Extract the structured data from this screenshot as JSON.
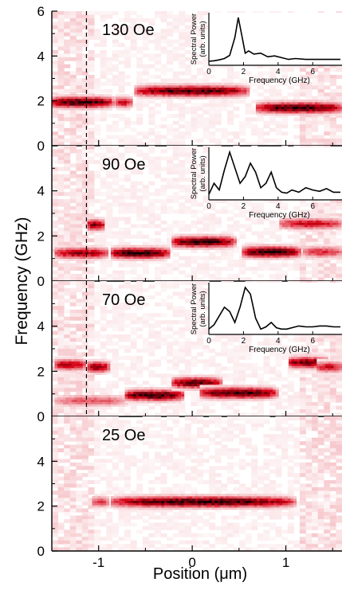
{
  "figure": {
    "ylabel": "Frequency (GHz)",
    "xlabel_prefix": "Position (",
    "xlabel_mu": "μ",
    "xlabel_suffix": "m)"
  },
  "chart_data": [
    {
      "type": "heatmap",
      "label": "130 Oe",
      "xlim": [
        -1.5,
        1.6
      ],
      "ylim": [
        0,
        6
      ],
      "yticks": [
        "0",
        "2",
        "4",
        "6"
      ],
      "dashed_line_x": -1.13,
      "bands": [
        {
          "x0": -1.55,
          "x1": -0.85,
          "f": 1.95,
          "peak": 1.0
        },
        {
          "x0": -0.85,
          "x1": -0.65,
          "f": 1.95,
          "peak": 0.6
        },
        {
          "x0": -0.65,
          "x1": 0.6,
          "f": 2.45,
          "peak": 0.95
        },
        {
          "x0": 0.65,
          "x1": 1.6,
          "f": 1.7,
          "peak": 1.0
        }
      ],
      "inset": {
        "ylabel_line1": "Spectral Power",
        "ylabel_line2": "(arb. units)",
        "xlabel": "Frequency (GHz)",
        "xticks": [
          "0",
          "2",
          "4",
          "6"
        ],
        "xlim": [
          0,
          7.6
        ],
        "x": [
          0,
          0.3,
          0.6,
          0.9,
          1.2,
          1.5,
          1.7,
          1.9,
          2.1,
          2.3,
          2.6,
          3.0,
          3.4,
          3.8,
          4.2,
          4.6,
          5.0,
          5.6,
          6.2,
          6.8,
          7.6
        ],
        "y": [
          0.02,
          0.03,
          0.05,
          0.08,
          0.15,
          0.55,
          1.0,
          0.6,
          0.2,
          0.25,
          0.18,
          0.2,
          0.12,
          0.14,
          0.1,
          0.06,
          0.08,
          0.06,
          0.06,
          0.06,
          0.06
        ]
      }
    },
    {
      "type": "heatmap",
      "label": "90 Oe",
      "xlim": [
        -1.5,
        1.6
      ],
      "ylim": [
        0,
        6
      ],
      "yticks": [
        "0",
        "2",
        "4"
      ],
      "dashed_line_x": -1.13,
      "bands": [
        {
          "x0": -1.5,
          "x1": -0.9,
          "f": 1.25,
          "peak": 0.75
        },
        {
          "x0": -0.9,
          "x1": -0.25,
          "f": 1.25,
          "peak": 1.0
        },
        {
          "x0": -0.25,
          "x1": 0.45,
          "f": 1.75,
          "peak": 1.0
        },
        {
          "x0": 0.5,
          "x1": 1.15,
          "f": 1.3,
          "peak": 1.0
        },
        {
          "x0": -1.15,
          "x1": -0.95,
          "f": 2.5,
          "peak": 0.8
        },
        {
          "x0": 0.9,
          "x1": 1.6,
          "f": 2.55,
          "peak": 0.6
        },
        {
          "x0": 1.15,
          "x1": 1.6,
          "f": 1.3,
          "peak": 0.5
        }
      ],
      "inset": {
        "ylabel_line1": "Spectral Power",
        "ylabel_line2": "(arb. units)",
        "xlabel": "Frequency (GHz)",
        "xticks": [
          "0",
          "2",
          "4",
          "6"
        ],
        "xlim": [
          0,
          7.6
        ],
        "x": [
          0,
          0.3,
          0.6,
          0.9,
          1.2,
          1.5,
          1.8,
          2.1,
          2.4,
          2.7,
          3.0,
          3.3,
          3.6,
          3.9,
          4.2,
          4.5,
          4.8,
          5.2,
          5.6,
          6.0,
          6.4,
          6.8,
          7.2,
          7.6
        ],
        "y": [
          0.05,
          0.3,
          0.15,
          0.6,
          1.0,
          0.65,
          0.3,
          0.45,
          0.75,
          0.55,
          0.2,
          0.3,
          0.55,
          0.2,
          0.1,
          0.08,
          0.15,
          0.1,
          0.2,
          0.15,
          0.12,
          0.18,
          0.1,
          0.1
        ]
      }
    },
    {
      "type": "heatmap",
      "label": "70 Oe",
      "xlim": [
        -1.5,
        1.6
      ],
      "ylim": [
        0,
        6
      ],
      "yticks": [
        "0",
        "2",
        "4"
      ],
      "dashed_line_x": -1.13,
      "bands": [
        {
          "x0": -1.5,
          "x1": -1.15,
          "f": 2.3,
          "peak": 0.7
        },
        {
          "x0": -1.15,
          "x1": -0.9,
          "f": 2.2,
          "peak": 0.8
        },
        {
          "x0": -1.5,
          "x1": -0.7,
          "f": 0.7,
          "peak": 0.4
        },
        {
          "x0": -0.75,
          "x1": -0.1,
          "f": 0.95,
          "peak": 1.0
        },
        {
          "x0": -0.25,
          "x1": 0.3,
          "f": 1.5,
          "peak": 0.9
        },
        {
          "x0": 0.05,
          "x1": 0.9,
          "f": 1.05,
          "peak": 1.0
        },
        {
          "x0": 1.0,
          "x1": 1.45,
          "f": 2.4,
          "peak": 0.9
        },
        {
          "x0": 1.3,
          "x1": 1.6,
          "f": 2.2,
          "peak": 0.6
        }
      ],
      "inset": {
        "ylabel_line1": "Spectral Power",
        "ylabel_line2": "(arb. units)",
        "xlabel": "Frequency (GHz)",
        "xticks": [
          "0",
          "2",
          "4",
          "6"
        ],
        "xlim": [
          0,
          7.6
        ],
        "x": [
          0,
          0.3,
          0.6,
          0.9,
          1.2,
          1.5,
          1.8,
          2.1,
          2.4,
          2.7,
          3.0,
          3.3,
          3.6,
          3.9,
          4.2,
          4.5,
          4.8,
          5.2,
          5.6,
          6.0,
          6.4,
          6.8,
          7.2,
          7.6
        ],
        "y": [
          0.05,
          0.15,
          0.35,
          0.55,
          0.45,
          0.2,
          0.55,
          1.0,
          0.85,
          0.3,
          0.05,
          0.1,
          0.2,
          0.08,
          0.05,
          0.05,
          0.08,
          0.12,
          0.1,
          0.1,
          0.12,
          0.12,
          0.1,
          0.1
        ]
      }
    },
    {
      "type": "heatmap",
      "label": "25 Oe",
      "xlim": [
        -1.5,
        1.6
      ],
      "ylim": [
        0,
        6
      ],
      "yticks": [
        "0",
        "2",
        "4"
      ],
      "xticks": [
        "-1",
        "0",
        "1"
      ],
      "bands": [
        {
          "x0": -0.9,
          "x1": 1.1,
          "f": 2.2,
          "peak": 1.0
        },
        {
          "x0": -1.1,
          "x1": -0.9,
          "f": 2.2,
          "peak": 0.45
        }
      ]
    }
  ]
}
